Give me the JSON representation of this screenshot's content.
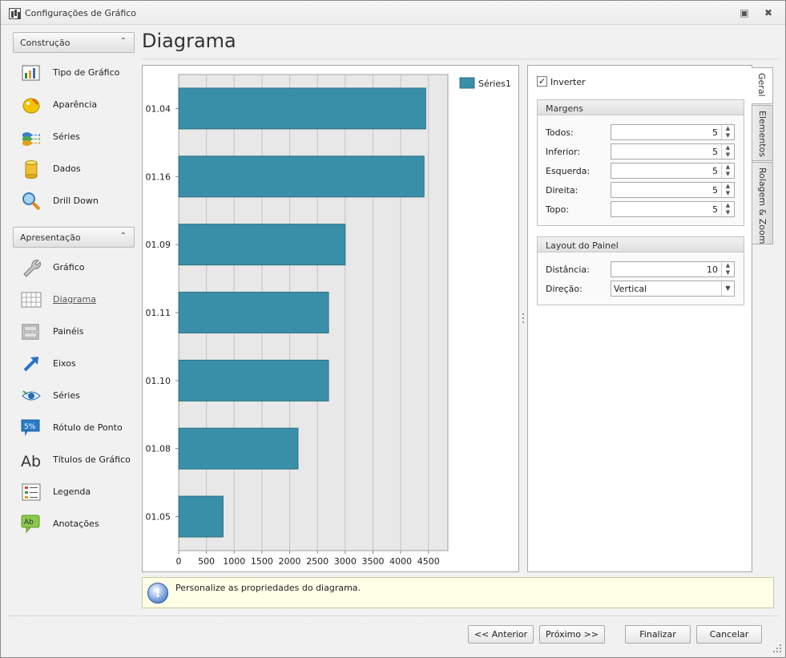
{
  "window": {
    "title": "Configurações de Gráfico"
  },
  "sidebar": {
    "groups": [
      {
        "label": "Construção",
        "items": [
          {
            "label": "Tipo de Gráfico",
            "icon": "chart-type-icon"
          },
          {
            "label": "Aparência",
            "icon": "palette-icon"
          },
          {
            "label": "Séries",
            "icon": "series-stack-icon"
          },
          {
            "label": "Dados",
            "icon": "database-icon"
          },
          {
            "label": "Drill Down",
            "icon": "magnifier-icon"
          }
        ]
      },
      {
        "label": "Apresentação",
        "items": [
          {
            "label": "Gráfico",
            "icon": "wrench-icon"
          },
          {
            "label": "Diagrama",
            "icon": "diagram-grid-icon",
            "active": true
          },
          {
            "label": "Painéis",
            "icon": "panes-icon"
          },
          {
            "label": "Eixos",
            "icon": "axis-arrow-icon"
          },
          {
            "label": "Séries",
            "icon": "series-eye-icon"
          },
          {
            "label": "Rótulo de Ponto",
            "icon": "point-label-icon"
          },
          {
            "label": "Títulos de Gráfico",
            "icon": "title-ab-icon"
          },
          {
            "label": "Legenda",
            "icon": "legend-icon"
          },
          {
            "label": "Anotações",
            "icon": "annotation-icon"
          }
        ]
      }
    ]
  },
  "main": {
    "title": "Diagrama",
    "info_text": "Personalize as propriedades do diagrama."
  },
  "chart_data": {
    "type": "bar",
    "orientation": "horizontal",
    "categories": [
      "01.04",
      "01.16",
      "01.09",
      "01.11",
      "01.10",
      "01.08",
      "01.05"
    ],
    "series": [
      {
        "name": "Séries1",
        "values": [
          4450,
          4420,
          3000,
          2700,
          2700,
          2150,
          800
        ],
        "color": "#3a8fa8"
      }
    ],
    "x_ticks": [
      "0",
      "500",
      "1000",
      "1500",
      "2000",
      "2500",
      "3000",
      "3500",
      "4000",
      "4500"
    ],
    "xlim": [
      0,
      4850
    ],
    "grid": true,
    "legend": "top-right",
    "plot_background": "#e8e8e8"
  },
  "properties": {
    "invert_label": "Inverter",
    "invert_checked": true,
    "margins": {
      "title": "Margens",
      "fields": [
        {
          "label": "Todos:",
          "value": "5"
        },
        {
          "label": "Inferior:",
          "value": "5"
        },
        {
          "label": "Esquerda:",
          "value": "5"
        },
        {
          "label": "Direita:",
          "value": "5"
        },
        {
          "label": "Topo:",
          "value": "5"
        }
      ]
    },
    "pane_layout": {
      "title": "Layout do Painel",
      "distance_label": "Distância:",
      "distance_value": "10",
      "direction_label": "Direção:",
      "direction_value": "Vertical"
    },
    "tabs": [
      "Geral",
      "Elementos",
      "Rolagem & Zoom"
    ]
  },
  "buttons": {
    "previous": "<< Anterior",
    "next": "Próximo >>",
    "finish": "Finalizar",
    "cancel": "Cancelar"
  }
}
